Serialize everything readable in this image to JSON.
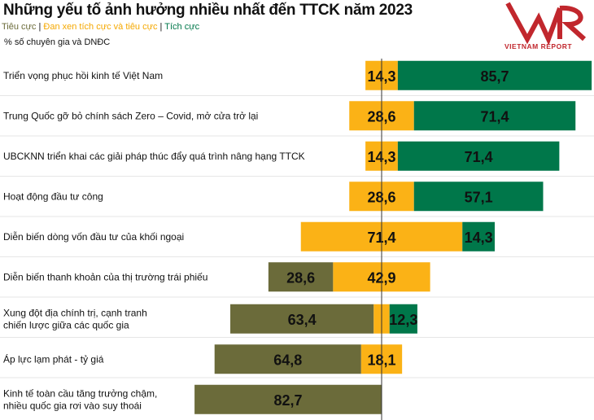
{
  "chart_data": {
    "type": "bar",
    "subtype": "diverging-stacked",
    "title": "Những yếu tố ảnh hưởng nhiều nhất đến TTCK năm 2023",
    "unit": "% số chuyên gia và DNĐC",
    "legend": [
      {
        "name": "Tiêu cực",
        "color": "#6b6b3a"
      },
      {
        "name": "Đan xen tích cực và tiêu cực",
        "color": "#fbb216"
      },
      {
        "name": "Tích cực",
        "color": "#00774a"
      }
    ],
    "legend_position": "top-left",
    "grid": false,
    "categories": [
      [
        "Triển vọng phục hồi kinh tế Việt Nam"
      ],
      [
        "Trung Quốc gỡ bỏ chính sách Zero – Covid, mở cửa trở lại"
      ],
      [
        "UBCKNN triển khai các giải pháp thúc đẩy quá trình nâng hạng TTCK"
      ],
      [
        "Hoạt động đầu tư công"
      ],
      [
        "Diễn biến dòng vốn đầu tư của khối ngoại"
      ],
      [
        "Diễn biến thanh khoản của thị trường trái phiếu"
      ],
      [
        "Xung đột địa chính trị, cạnh tranh",
        "chiến lược giữa các quốc gia"
      ],
      [
        "Áp lực lạm phát - tỷ giá"
      ],
      [
        "Kinh tế toàn cầu tăng trưởng chậm,",
        "nhiều quốc gia rơi vào suy thoái"
      ]
    ],
    "series": [
      {
        "name": "Tiêu cực",
        "values": [
          null,
          null,
          null,
          null,
          null,
          "28,6",
          "63,4",
          "64,8",
          "82,7"
        ]
      },
      {
        "name": "Đan xen tích cực và tiêu cực",
        "values": [
          "14,3",
          "28,6",
          "14,3",
          "28,6",
          "71,4",
          "42,9",
          null,
          "18,1",
          null
        ],
        "unlabeled_estimates": [
          null,
          null,
          null,
          null,
          null,
          null,
          7,
          null,
          null
        ]
      },
      {
        "name": "Tích cực",
        "values": [
          "85,7",
          "71,4",
          "71,4",
          "57,1",
          "14,3",
          null,
          "12,3",
          null,
          null
        ]
      }
    ]
  },
  "logo": {
    "text": "VNR",
    "subtext": "VIETNAM REPORT"
  }
}
